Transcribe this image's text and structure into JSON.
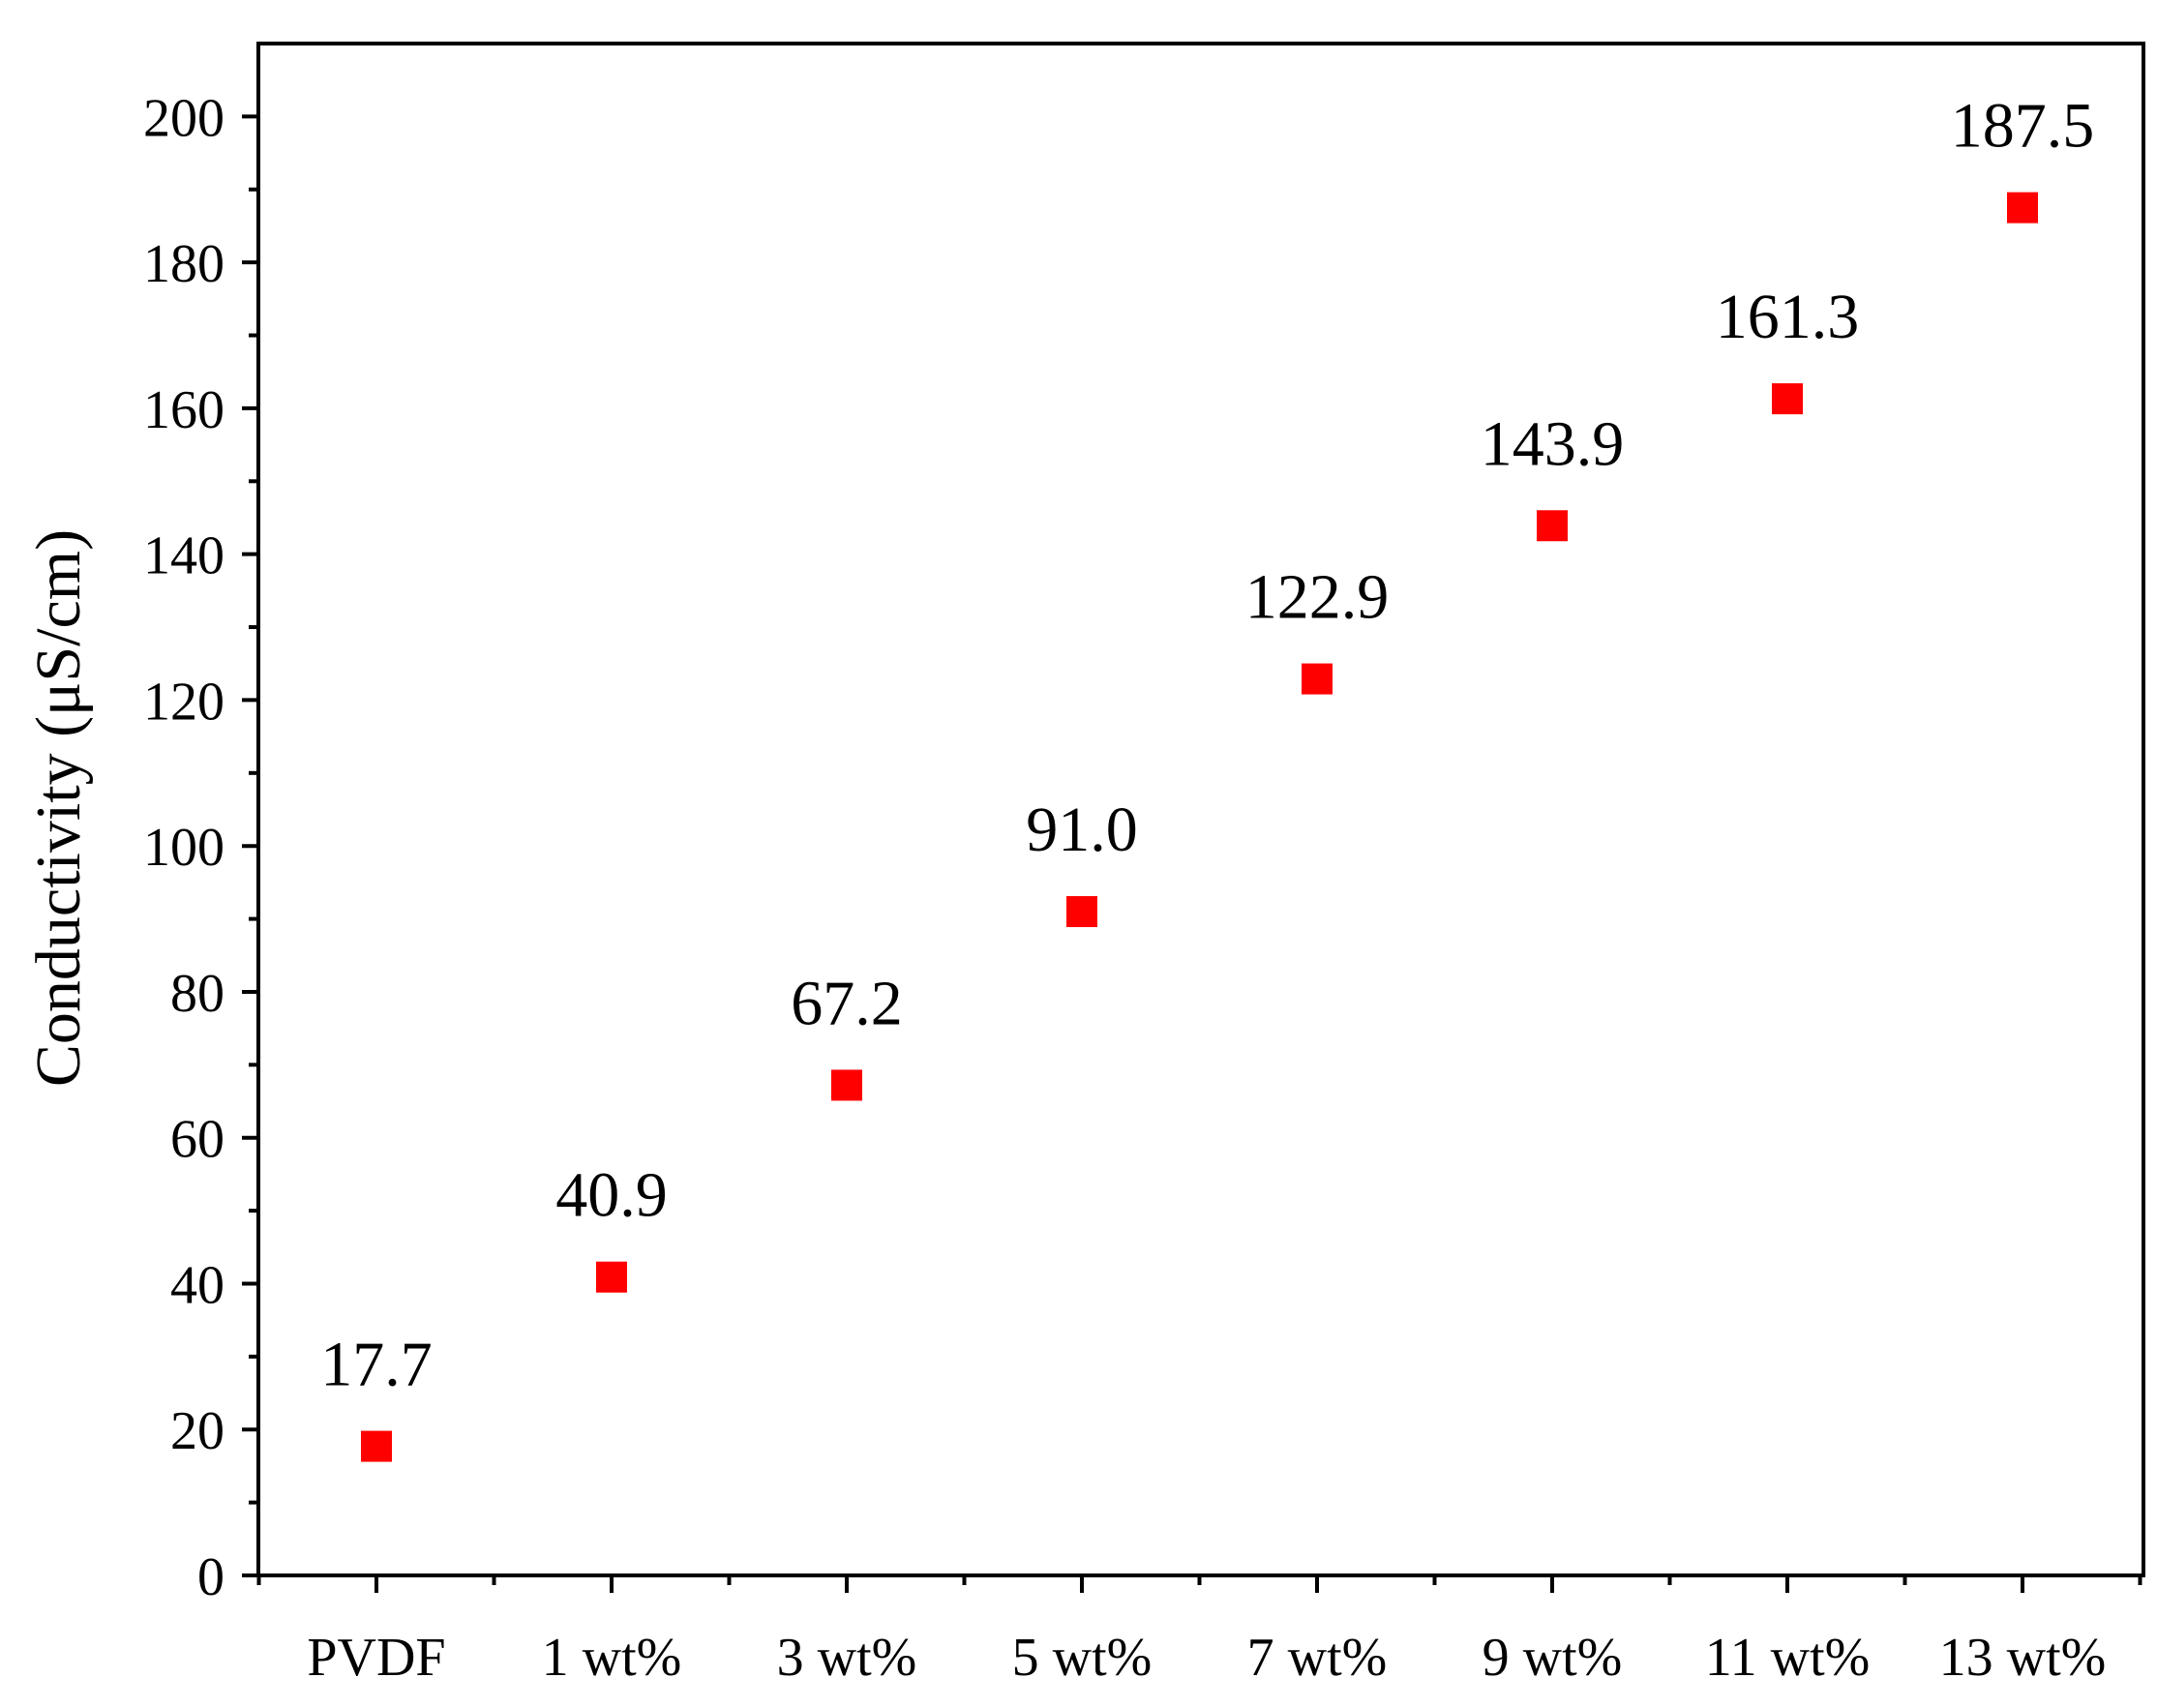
{
  "chart_data": {
    "type": "scatter",
    "title": "",
    "xlabel": "",
    "ylabel": "Conductivity (μS/cm)",
    "categories": [
      "PVDF",
      "1 wt%",
      "3 wt%",
      "5 wt%",
      "7 wt%",
      "9 wt%",
      "11 wt%",
      "13 wt%"
    ],
    "values": [
      17.7,
      40.9,
      67.2,
      91.0,
      122.9,
      143.9,
      161.3,
      187.5
    ],
    "data_labels": [
      "17.7",
      "40.9",
      "67.2",
      "91.0",
      "122.9",
      "143.9",
      "161.3",
      "187.5"
    ],
    "ylim": [
      0,
      210
    ],
    "yticks": [
      0,
      20,
      40,
      60,
      80,
      100,
      120,
      140,
      160,
      180,
      200
    ],
    "ytick_labels": [
      "0",
      "20",
      "40",
      "60",
      "80",
      "100",
      "120",
      "140",
      "160",
      "180",
      "200"
    ],
    "marker": "square",
    "marker_color": "#ff0000",
    "grid": false,
    "legend": "none"
  }
}
